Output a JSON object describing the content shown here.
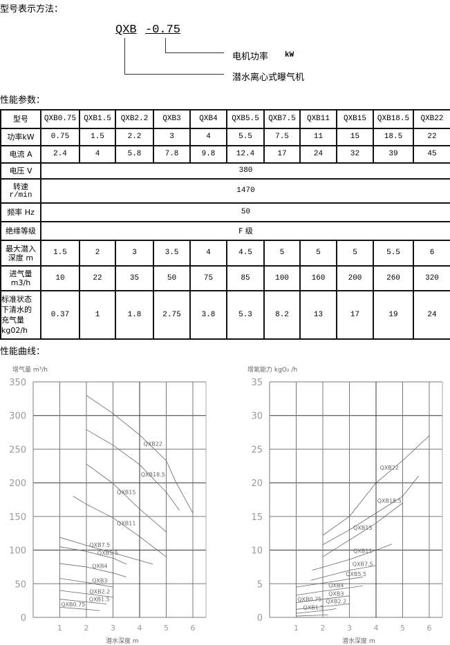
{
  "model_notation": {
    "heading": "型号表示方法：",
    "prefix": "QXB",
    "suffix": "-0.75",
    "label_power": "电机功率",
    "label_power_unit": "kW",
    "label_type": "潜水离心式曝气机"
  },
  "performance": {
    "heading": "性能参数：",
    "header": {
      "label": "型号",
      "models": [
        "QXB0.75",
        "QXB1.5",
        "QXB2.2",
        "QXB3",
        "QXB4",
        "QXB5.5",
        "QXB7.5",
        "QXB11",
        "QXB15",
        "QXB18.5",
        "QXB22"
      ]
    },
    "power": {
      "label": "功率kW",
      "values": [
        "0.75",
        "1.5",
        "2.2",
        "3",
        "4",
        "5.5",
        "7.5",
        "11",
        "15",
        "18.5",
        "22"
      ]
    },
    "current": {
      "label": "电流 A",
      "values": [
        "2.4",
        "4",
        "5.8",
        "7.8",
        "9.8",
        "12.4",
        "17",
        "24",
        "32",
        "39",
        "45"
      ]
    },
    "voltage": {
      "label": "电压 V",
      "value": "380"
    },
    "speed": {
      "label_1": "转速",
      "label_2": "r/min",
      "value": "1470"
    },
    "frequency": {
      "label": "频率 Hz",
      "value": "50"
    },
    "insulation": {
      "label": "绝缘等级",
      "value": "F 级"
    },
    "max_depth": {
      "label_1": "最大潜入",
      "label_2": "深度 m",
      "values": [
        "1.5",
        "2",
        "3",
        "3.5",
        "4",
        "4.5",
        "5",
        "5",
        "5",
        "5.5",
        "6"
      ]
    },
    "air_intake": {
      "label_1": "进气量",
      "label_2": "m3/h",
      "values": [
        "10",
        "22",
        "35",
        "50",
        "75",
        "85",
        "100",
        "160",
        "200",
        "260",
        "320"
      ]
    },
    "oxygenation": {
      "label_1": "标准状态",
      "label_2": "下清水的",
      "label_3": "充气量",
      "label_4": "kg02/h",
      "values": [
        "0.37",
        "1",
        "1.8",
        "2.75",
        "3.8",
        "5.3",
        "8.2",
        "13",
        "17",
        "19",
        "24"
      ]
    }
  },
  "curves_heading": "性能曲线：",
  "chart_data": [
    {
      "type": "line",
      "ylabel": "增气量 m³/h",
      "xlabel": "潜水深度 m",
      "xlim": [
        0,
        6.5
      ],
      "ylim": [
        0,
        350
      ],
      "xticks": [
        "1",
        "2",
        "3",
        "4",
        "5",
        "6"
      ],
      "yticks": [
        "0",
        "50",
        "100",
        "150",
        "200",
        "250",
        "300",
        "350"
      ],
      "grid": true,
      "series": [
        {
          "name": "QXB22",
          "points": [
            [
              2,
              330
            ],
            [
              3,
              303
            ],
            [
              4,
              271
            ],
            [
              5,
              233
            ],
            [
              5.35,
              202
            ],
            [
              6,
              155
            ]
          ]
        },
        {
          "name": "QXB18.5",
          "points": [
            [
              2,
              279
            ],
            [
              3,
              256
            ],
            [
              4,
              227
            ],
            [
              5,
              186
            ],
            [
              5.5,
              159
            ]
          ]
        },
        {
          "name": "QXB15",
          "points": [
            [
              2,
              228
            ],
            [
              3,
              199
            ],
            [
              4,
              161
            ],
            [
              5,
              127
            ]
          ]
        },
        {
          "name": "QXB11",
          "points": [
            [
              1.5,
              180
            ],
            [
              2,
              168
            ],
            [
              3,
              148
            ],
            [
              4,
              120
            ],
            [
              5,
              90
            ]
          ]
        },
        {
          "name": "QXB7.5",
          "points": [
            [
              1,
              119
            ],
            [
              2,
              107
            ],
            [
              3,
              96
            ],
            [
              4.5,
              79
            ]
          ]
        },
        {
          "name": "QXB5.5",
          "points": [
            [
              1,
              105
            ],
            [
              2,
              98
            ],
            [
              3,
              88
            ],
            [
              3.5,
              79
            ]
          ]
        },
        {
          "name": "QXB4",
          "points": [
            [
              1,
              80
            ],
            [
              2,
              75
            ],
            [
              3,
              66
            ],
            [
              3.5,
              60
            ]
          ]
        },
        {
          "name": "QXB3",
          "points": [
            [
              1,
              58
            ],
            [
              2,
              52
            ],
            [
              3,
              45
            ]
          ]
        },
        {
          "name": "QXB2.2",
          "points": [
            [
              1,
              40
            ],
            [
              2,
              35
            ],
            [
              3,
              30
            ]
          ]
        },
        {
          "name": "QXB1.5",
          "points": [
            [
              1,
              27
            ],
            [
              2,
              23
            ],
            [
              2.75,
              20
            ]
          ]
        },
        {
          "name": "QXB0.75",
          "points": [
            [
              1,
              15
            ],
            [
              2,
              12
            ],
            [
              2.5,
              10
            ]
          ]
        }
      ]
    },
    {
      "type": "line",
      "ylabel": "增氧能力 kgO₂ /h",
      "xlabel": "潜水深度 m",
      "xlim": [
        0,
        6.5
      ],
      "ylim": [
        0,
        35
      ],
      "xticks": [
        "1",
        "2",
        "3",
        "4",
        "5",
        "6"
      ],
      "yticks": [
        "0",
        "5",
        "10",
        "15",
        "20",
        "25",
        "30",
        "35"
      ],
      "grid": true,
      "series": [
        {
          "name": "QXB22",
          "points": [
            [
              2,
              12.2
            ],
            [
              3,
              15
            ],
            [
              4,
              20
            ],
            [
              5,
              23.3
            ],
            [
              6,
              27
            ]
          ]
        },
        {
          "name": "QXB18.5",
          "points": [
            [
              2,
              10.8
            ],
            [
              3,
              13
            ],
            [
              4,
              15.5
            ],
            [
              5,
              18
            ],
            [
              5.6,
              21
            ]
          ]
        },
        {
          "name": "QXB15",
          "points": [
            [
              2,
              9
            ],
            [
              3,
              11.5
            ],
            [
              4,
              14
            ],
            [
              5,
              17
            ]
          ]
        },
        {
          "name": "QXB11",
          "points": [
            [
              1.6,
              7
            ],
            [
              3,
              8.6
            ],
            [
              4,
              10
            ],
            [
              4.6,
              10.9
            ]
          ]
        },
        {
          "name": "QXB7.5",
          "points": [
            [
              1.55,
              5.5
            ],
            [
              3,
              7
            ],
            [
              4,
              7.7
            ]
          ]
        },
        {
          "name": "QXB5.5",
          "points": [
            [
              1,
              4.5
            ],
            [
              3,
              5.7
            ],
            [
              3.5,
              6
            ]
          ]
        },
        {
          "name": "QXB4",
          "points": [
            [
              1,
              3.3
            ],
            [
              2,
              3.9
            ],
            [
              3,
              4.4
            ],
            [
              3.5,
              4.7
            ]
          ]
        },
        {
          "name": "QXB3",
          "points": [
            [
              1,
              2.2
            ],
            [
              2,
              2.7
            ],
            [
              3,
              3.2
            ]
          ]
        },
        {
          "name": "QXB2.2",
          "points": [
            [
              1,
              1.2
            ],
            [
              2,
              1.6
            ],
            [
              3,
              2.0
            ]
          ]
        },
        {
          "name": "QXB1.5",
          "points": [
            [
              1,
              0.6
            ],
            [
              2,
              1.0
            ],
            [
              2.5,
              1.3
            ]
          ]
        },
        {
          "name": "QXB0.75",
          "points": [
            [
              1,
              0.2
            ],
            [
              2,
              0.35
            ],
            [
              2.2,
              0.4
            ]
          ]
        }
      ]
    }
  ]
}
